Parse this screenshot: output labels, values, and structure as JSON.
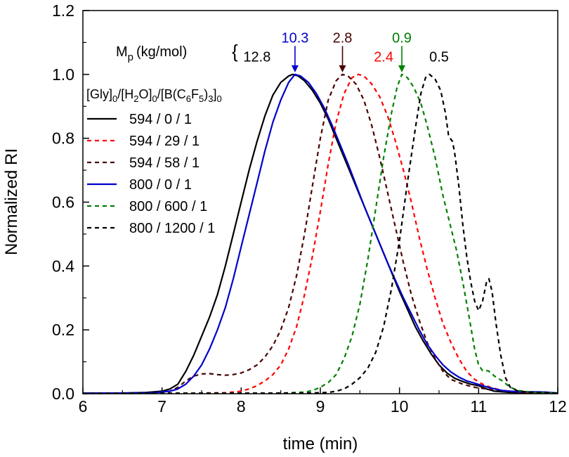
{
  "chart_data": {
    "type": "line",
    "title": "",
    "xlabel": "time (min)",
    "ylabel": "Normalized RI",
    "xlim": [
      6,
      12
    ],
    "ylim": [
      0,
      1.2
    ],
    "xticks": [
      6,
      7,
      8,
      9,
      10,
      11,
      12
    ],
    "yticks": [
      0.0,
      0.2,
      0.4,
      0.6,
      0.8,
      1.0,
      1.2
    ],
    "ytick_labels": [
      "0.0",
      "0.2",
      "0.4",
      "0.6",
      "0.8",
      "1.0",
      "1.2"
    ],
    "legend_title": "[Gly]0/[H2O]0/[B(C6F5)3]0",
    "mp_label": "Mp (kg/mol)",
    "mp_brace": "{",
    "series": [
      {
        "name": "594 / 0 / 1",
        "color": "#000000",
        "dash": "solid",
        "points": [
          [
            6,
            0.002
          ],
          [
            6.5,
            0.002
          ],
          [
            6.8,
            0.004
          ],
          [
            7.0,
            0.008
          ],
          [
            7.1,
            0.015
          ],
          [
            7.2,
            0.03
          ],
          [
            7.3,
            0.07
          ],
          [
            7.4,
            0.12
          ],
          [
            7.5,
            0.18
          ],
          [
            7.6,
            0.24
          ],
          [
            7.7,
            0.31
          ],
          [
            7.8,
            0.4
          ],
          [
            7.9,
            0.5
          ],
          [
            8.0,
            0.6
          ],
          [
            8.1,
            0.7
          ],
          [
            8.2,
            0.79
          ],
          [
            8.3,
            0.87
          ],
          [
            8.4,
            0.935
          ],
          [
            8.5,
            0.975
          ],
          [
            8.6,
            0.995
          ],
          [
            8.65,
            1.0
          ],
          [
            8.72,
            0.995
          ],
          [
            8.8,
            0.98
          ],
          [
            8.9,
            0.95
          ],
          [
            9.0,
            0.91
          ],
          [
            9.1,
            0.86
          ],
          [
            9.2,
            0.8
          ],
          [
            9.3,
            0.74
          ],
          [
            9.4,
            0.68
          ],
          [
            9.5,
            0.62
          ],
          [
            9.6,
            0.56
          ],
          [
            9.7,
            0.5
          ],
          [
            9.8,
            0.44
          ],
          [
            9.9,
            0.38
          ],
          [
            10.0,
            0.32
          ],
          [
            10.1,
            0.265
          ],
          [
            10.2,
            0.21
          ],
          [
            10.3,
            0.165
          ],
          [
            10.4,
            0.125
          ],
          [
            10.5,
            0.09
          ],
          [
            10.6,
            0.065
          ],
          [
            10.7,
            0.048
          ],
          [
            10.8,
            0.038
          ],
          [
            10.9,
            0.03
          ],
          [
            11.0,
            0.025
          ],
          [
            11.1,
            0.015
          ],
          [
            11.2,
            0.008
          ],
          [
            11.4,
            0.004
          ],
          [
            11.6,
            0.003
          ],
          [
            11.8,
            0.003
          ],
          [
            12.0,
            0.002
          ]
        ]
      },
      {
        "name": "594 / 29 / 1",
        "color": "#ff0000",
        "dash": "dashed",
        "points": [
          [
            6,
            0.001
          ],
          [
            7.0,
            0.002
          ],
          [
            7.5,
            0.002
          ],
          [
            7.8,
            0.003
          ],
          [
            8.0,
            0.008
          ],
          [
            8.1,
            0.015
          ],
          [
            8.2,
            0.025
          ],
          [
            8.3,
            0.04
          ],
          [
            8.4,
            0.06
          ],
          [
            8.5,
            0.09
          ],
          [
            8.6,
            0.14
          ],
          [
            8.7,
            0.21
          ],
          [
            8.8,
            0.31
          ],
          [
            8.9,
            0.43
          ],
          [
            9.0,
            0.57
          ],
          [
            9.1,
            0.72
          ],
          [
            9.2,
            0.85
          ],
          [
            9.3,
            0.94
          ],
          [
            9.4,
            0.99
          ],
          [
            9.48,
            1.0
          ],
          [
            9.55,
            0.995
          ],
          [
            9.65,
            0.97
          ],
          [
            9.75,
            0.93
          ],
          [
            9.85,
            0.87
          ],
          [
            9.95,
            0.79
          ],
          [
            10.05,
            0.7
          ],
          [
            10.15,
            0.6
          ],
          [
            10.25,
            0.49
          ],
          [
            10.35,
            0.39
          ],
          [
            10.45,
            0.3
          ],
          [
            10.55,
            0.22
          ],
          [
            10.65,
            0.16
          ],
          [
            10.75,
            0.11
          ],
          [
            10.85,
            0.07
          ],
          [
            10.95,
            0.045
          ],
          [
            11.05,
            0.03
          ],
          [
            11.15,
            0.02
          ],
          [
            11.3,
            0.01
          ],
          [
            11.5,
            0.005
          ],
          [
            11.8,
            0.003
          ],
          [
            12.0,
            0.002
          ]
        ]
      },
      {
        "name": "594 / 58 / 1",
        "color": "#4a0000",
        "dash": "dashed",
        "points": [
          [
            6,
            0.001
          ],
          [
            7.0,
            0.003
          ],
          [
            7.1,
            0.008
          ],
          [
            7.2,
            0.02
          ],
          [
            7.3,
            0.04
          ],
          [
            7.4,
            0.055
          ],
          [
            7.5,
            0.062
          ],
          [
            7.6,
            0.063
          ],
          [
            7.7,
            0.06
          ],
          [
            7.8,
            0.058
          ],
          [
            7.9,
            0.06
          ],
          [
            8.0,
            0.065
          ],
          [
            8.1,
            0.075
          ],
          [
            8.2,
            0.09
          ],
          [
            8.3,
            0.115
          ],
          [
            8.4,
            0.15
          ],
          [
            8.5,
            0.2
          ],
          [
            8.6,
            0.27
          ],
          [
            8.7,
            0.37
          ],
          [
            8.8,
            0.5
          ],
          [
            8.9,
            0.65
          ],
          [
            9.0,
            0.8
          ],
          [
            9.1,
            0.92
          ],
          [
            9.2,
            0.98
          ],
          [
            9.28,
            1.0
          ],
          [
            9.35,
            0.995
          ],
          [
            9.45,
            0.97
          ],
          [
            9.55,
            0.92
          ],
          [
            9.65,
            0.84
          ],
          [
            9.75,
            0.74
          ],
          [
            9.85,
            0.63
          ],
          [
            9.95,
            0.52
          ],
          [
            10.05,
            0.41
          ],
          [
            10.15,
            0.31
          ],
          [
            10.25,
            0.23
          ],
          [
            10.35,
            0.16
          ],
          [
            10.45,
            0.11
          ],
          [
            10.55,
            0.07
          ],
          [
            10.65,
            0.045
          ],
          [
            10.8,
            0.03
          ],
          [
            10.95,
            0.02
          ],
          [
            11.1,
            0.015
          ],
          [
            11.3,
            0.01
          ],
          [
            11.5,
            0.006
          ],
          [
            11.8,
            0.003
          ],
          [
            12.0,
            0.002
          ]
        ]
      },
      {
        "name": "800 / 0 / 1",
        "color": "#0000cc",
        "dash": "solid",
        "points": [
          [
            6,
            0.002
          ],
          [
            6.5,
            0.002
          ],
          [
            6.9,
            0.003
          ],
          [
            7.1,
            0.008
          ],
          [
            7.2,
            0.015
          ],
          [
            7.3,
            0.03
          ],
          [
            7.4,
            0.055
          ],
          [
            7.5,
            0.09
          ],
          [
            7.6,
            0.14
          ],
          [
            7.7,
            0.2
          ],
          [
            7.8,
            0.27
          ],
          [
            7.9,
            0.36
          ],
          [
            8.0,
            0.46
          ],
          [
            8.1,
            0.56
          ],
          [
            8.2,
            0.66
          ],
          [
            8.3,
            0.76
          ],
          [
            8.4,
            0.85
          ],
          [
            8.5,
            0.92
          ],
          [
            8.6,
            0.975
          ],
          [
            8.68,
            1.0
          ],
          [
            8.75,
            0.995
          ],
          [
            8.85,
            0.975
          ],
          [
            8.95,
            0.94
          ],
          [
            9.05,
            0.895
          ],
          [
            9.15,
            0.84
          ],
          [
            9.25,
            0.78
          ],
          [
            9.35,
            0.72
          ],
          [
            9.45,
            0.655
          ],
          [
            9.55,
            0.59
          ],
          [
            9.65,
            0.53
          ],
          [
            9.75,
            0.47
          ],
          [
            9.85,
            0.41
          ],
          [
            9.95,
            0.355
          ],
          [
            10.05,
            0.3
          ],
          [
            10.15,
            0.25
          ],
          [
            10.25,
            0.2
          ],
          [
            10.35,
            0.155
          ],
          [
            10.45,
            0.12
          ],
          [
            10.55,
            0.09
          ],
          [
            10.65,
            0.068
          ],
          [
            10.75,
            0.052
          ],
          [
            10.85,
            0.04
          ],
          [
            10.95,
            0.033
          ],
          [
            11.05,
            0.025
          ],
          [
            11.15,
            0.018
          ],
          [
            11.3,
            0.01
          ],
          [
            11.5,
            0.006
          ],
          [
            11.7,
            0.006
          ],
          [
            11.85,
            0.005
          ],
          [
            12.0,
            0.002
          ]
        ]
      },
      {
        "name": "800 / 600 / 1",
        "color": "#008000",
        "dash": "dashed",
        "points": [
          [
            6,
            0.001
          ],
          [
            8.5,
            0.002
          ],
          [
            8.8,
            0.005
          ],
          [
            8.9,
            0.01
          ],
          [
            9.0,
            0.02
          ],
          [
            9.1,
            0.035
          ],
          [
            9.2,
            0.06
          ],
          [
            9.3,
            0.11
          ],
          [
            9.4,
            0.18
          ],
          [
            9.5,
            0.28
          ],
          [
            9.6,
            0.42
          ],
          [
            9.7,
            0.58
          ],
          [
            9.8,
            0.74
          ],
          [
            9.9,
            0.88
          ],
          [
            9.97,
            0.96
          ],
          [
            10.03,
            1.0
          ],
          [
            10.1,
            0.99
          ],
          [
            10.18,
            0.96
          ],
          [
            10.27,
            0.91
          ],
          [
            10.35,
            0.84
          ],
          [
            10.45,
            0.74
          ],
          [
            10.55,
            0.62
          ],
          [
            10.62,
            0.55
          ],
          [
            10.66,
            0.51
          ],
          [
            10.72,
            0.45
          ],
          [
            10.8,
            0.35
          ],
          [
            10.88,
            0.24
          ],
          [
            10.95,
            0.14
          ],
          [
            11.0,
            0.09
          ],
          [
            11.05,
            0.072
          ],
          [
            11.12,
            0.072
          ],
          [
            11.16,
            0.065
          ],
          [
            11.2,
            0.055
          ],
          [
            11.3,
            0.04
          ],
          [
            11.4,
            0.02
          ],
          [
            11.5,
            0.01
          ],
          [
            11.7,
            0.004
          ],
          [
            12.0,
            0.002
          ]
        ]
      },
      {
        "name": "800 / 1200 / 1",
        "color": "#000000",
        "dash": "dashed",
        "points": [
          [
            6,
            0.001
          ],
          [
            8.8,
            0.002
          ],
          [
            9.1,
            0.004
          ],
          [
            9.2,
            0.008
          ],
          [
            9.3,
            0.015
          ],
          [
            9.4,
            0.03
          ],
          [
            9.5,
            0.05
          ],
          [
            9.6,
            0.08
          ],
          [
            9.7,
            0.13
          ],
          [
            9.8,
            0.21
          ],
          [
            9.9,
            0.33
          ],
          [
            10.0,
            0.48
          ],
          [
            10.1,
            0.66
          ],
          [
            10.2,
            0.83
          ],
          [
            10.27,
            0.94
          ],
          [
            10.33,
            0.99
          ],
          [
            10.38,
            1.0
          ],
          [
            10.45,
            0.985
          ],
          [
            10.52,
            0.95
          ],
          [
            10.58,
            0.88
          ],
          [
            10.62,
            0.81
          ],
          [
            10.64,
            0.8
          ],
          [
            10.67,
            0.79
          ],
          [
            10.7,
            0.75
          ],
          [
            10.75,
            0.65
          ],
          [
            10.8,
            0.53
          ],
          [
            10.85,
            0.43
          ],
          [
            10.9,
            0.35
          ],
          [
            10.95,
            0.29
          ],
          [
            11.0,
            0.26
          ],
          [
            11.05,
            0.29
          ],
          [
            11.1,
            0.35
          ],
          [
            11.13,
            0.36
          ],
          [
            11.17,
            0.32
          ],
          [
            11.22,
            0.22
          ],
          [
            11.28,
            0.12
          ],
          [
            11.34,
            0.05
          ],
          [
            11.4,
            0.02
          ],
          [
            11.5,
            0.008
          ],
          [
            11.7,
            0.004
          ],
          [
            12.0,
            0.002
          ]
        ]
      }
    ],
    "peak_labels": [
      {
        "text": "12.8",
        "x": 8.2,
        "y": 1.04,
        "color": "#000000",
        "arrow": false
      },
      {
        "text": "10.3",
        "x": 8.68,
        "y": 1.1,
        "color": "#0000cc",
        "arrow": true
      },
      {
        "text": "2.8",
        "x": 9.28,
        "y": 1.1,
        "color": "#4a0000",
        "arrow": true
      },
      {
        "text": "2.4",
        "x": 9.8,
        "y": 1.04,
        "color": "#ff0000",
        "arrow": false
      },
      {
        "text": "0.9",
        "x": 10.03,
        "y": 1.1,
        "color": "#008000",
        "arrow": true
      },
      {
        "text": "0.5",
        "x": 10.5,
        "y": 1.04,
        "color": "#000000",
        "arrow": false
      }
    ]
  }
}
